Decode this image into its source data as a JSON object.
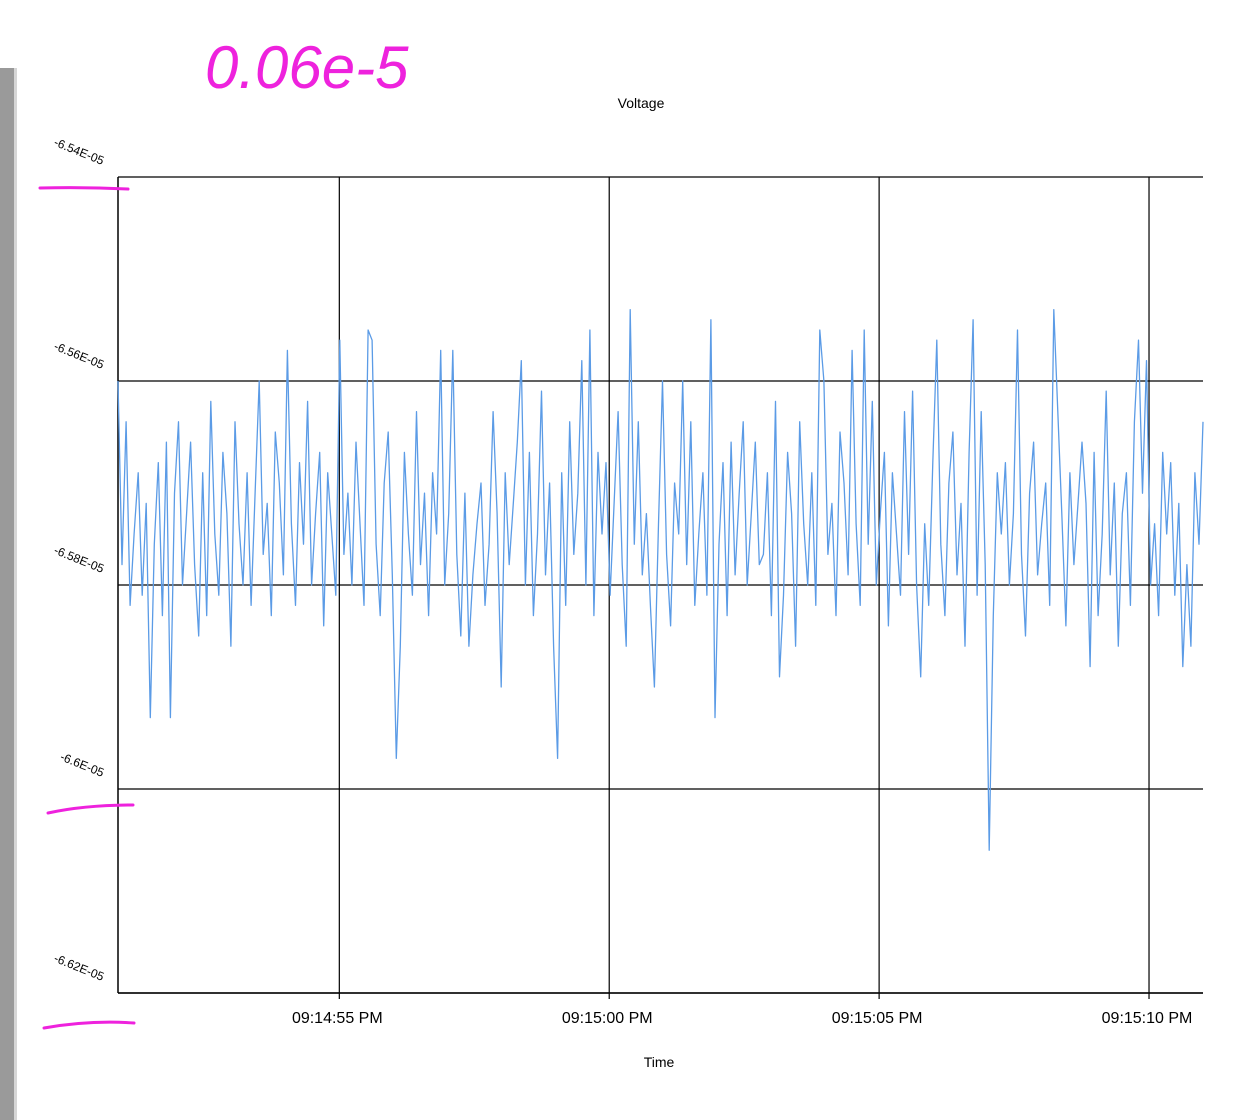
{
  "annotation": {
    "handwritten_note": "0.06e-5",
    "ink_color": "#ee22dd"
  },
  "chart_data": {
    "type": "line",
    "title": "Voltage",
    "xlabel": "Time",
    "ylabel": "",
    "ylim": [
      -6.62e-05,
      -6.54e-05
    ],
    "x_range": [
      "09:14:50.9 PM",
      "09:15:11.0 PM"
    ],
    "y_ticks": [
      {
        "value": -6.54e-05,
        "label": "-6.54E-05"
      },
      {
        "value": -6.56e-05,
        "label": "-6.56E-05"
      },
      {
        "value": -6.58e-05,
        "label": "-6.58E-05"
      },
      {
        "value": -6.6e-05,
        "label": "-6.6E-05"
      },
      {
        "value": -6.62e-05,
        "label": "-6.62E-05"
      }
    ],
    "x_ticks": [
      {
        "time": "09:14:55 PM",
        "label": "09:14:55 PM"
      },
      {
        "time": "09:15:00 PM",
        "label": "09:15:00 PM"
      },
      {
        "time": "09:15:05 PM",
        "label": "09:15:05 PM"
      },
      {
        "time": "09:15:10 PM",
        "label": "09:15:10 PM"
      }
    ],
    "grid": true,
    "series": [
      {
        "color": "#5b9be6",
        "x_start": "09:14:50.9 PM",
        "x_end": "09:15:11.0 PM",
        "values": [
          -6.56e-05,
          -6.578e-05,
          -6.564e-05,
          -6.582e-05,
          -6.575e-05,
          -6.569e-05,
          -6.581e-05,
          -6.572e-05,
          -6.593e-05,
          -6.576e-05,
          -6.568e-05,
          -6.583e-05,
          -6.566e-05,
          -6.579e-05,
          -6.571e-05,
          -6.564e-05,
          -6.58e-05,
          -6.573e-05,
          -6.566e-05,
          -6.578e-05,
          -6.577e-05,
          -6.569e-05,
          -6.583e-05,
          -6.562e-05,
          -6.575e-05,
          -6.581e-05,
          -6.567e-05,
          -6.573e-05,
          -6.586e-05,
          -6.564e-05,
          -6.574e-05,
          -6.58e-05,
          -6.569e-05,
          -6.582e-05,
          -6.571e-05,
          -6.56e-05,
          -6.577e-05,
          -6.572e-05,
          -6.583e-05,
          -6.565e-05,
          -6.57e-05,
          -6.579e-05,
          -6.557e-05,
          -6.574e-05,
          -6.582e-05,
          -6.568e-05,
          -6.576e-05,
          -6.562e-05,
          -6.58e-05,
          -6.573e-05,
          -6.567e-05,
          -6.584e-05,
          -6.569e-05,
          -6.575e-05,
          -6.581e-05,
          -6.563e-05,
          -6.577e-05,
          -6.571e-05,
          -6.58e-05,
          -6.566e-05,
          -6.574e-05,
          -6.582e-05,
          -6.568e-05,
          -6.556e-05,
          -6.576e-05,
          -6.583e-05,
          -6.57e-05,
          -6.565e-05,
          -6.579e-05,
          -6.572e-05,
          -6.586e-05,
          -6.567e-05,
          -6.575e-05,
          -6.581e-05,
          -6.563e-05,
          -6.578e-05,
          -6.571e-05,
          -6.583e-05,
          -6.569e-05,
          -6.575e-05,
          -6.568e-05,
          -6.58e-05,
          -6.573e-05,
          -6.557e-05,
          -6.577e-05,
          -6.585e-05,
          -6.571e-05,
          -6.566e-05,
          -6.579e-05,
          -6.574e-05,
          -6.57e-05,
          -6.582e-05,
          -6.576e-05,
          -6.563e-05,
          -6.573e-05,
          -6.584e-05,
          -6.569e-05,
          -6.578e-05,
          -6.572e-05,
          -6.566e-05,
          -6.572e-05,
          -6.58e-05,
          -6.567e-05,
          -6.583e-05,
          -6.575e-05,
          -6.561e-05,
          -6.579e-05,
          -6.57e-05,
          -6.586e-05,
          -6.573e-05,
          -6.569e-05,
          -6.582e-05,
          -6.564e-05,
          -6.577e-05,
          -6.571e-05,
          -6.558e-05,
          -6.58e-05,
          -6.574e-05,
          -6.583e-05,
          -6.567e-05,
          -6.575e-05,
          -6.568e-05,
          -6.581e-05,
          -6.572e-05,
          -6.563e-05,
          -6.578e-05,
          -6.586e-05,
          -6.569e-05,
          -6.576e-05,
          -6.564e-05,
          -6.579e-05,
          -6.573e-05,
          -6.582e-05,
          -6.567e-05,
          -6.574e-05,
          -6.56e-05,
          -6.577e-05,
          -6.584e-05,
          -6.57e-05,
          -6.575e-05
        ],
        "spikes": [
          {
            "index": 13,
            "value": -6.593e-05
          },
          {
            "index": 20,
            "value": -6.585e-05
          },
          {
            "index": 55,
            "value": -6.556e-05
          },
          {
            "index": 62,
            "value": -6.555e-05
          },
          {
            "index": 69,
            "value": -6.597e-05
          },
          {
            "index": 80,
            "value": -6.557e-05
          },
          {
            "index": 87,
            "value": -6.586e-05
          },
          {
            "index": 95,
            "value": -6.59e-05
          },
          {
            "index": 100,
            "value": -6.558e-05
          },
          {
            "index": 109,
            "value": -6.597e-05
          },
          {
            "index": 117,
            "value": -6.555e-05
          },
          {
            "index": 127,
            "value": -6.553e-05
          },
          {
            "index": 133,
            "value": -6.59e-05
          },
          {
            "index": 147,
            "value": -6.554e-05
          },
          {
            "index": 164,
            "value": -6.589e-05
          },
          {
            "index": 174,
            "value": -6.555e-05
          },
          {
            "index": 185,
            "value": -6.555e-05
          },
          {
            "index": 197,
            "value": -6.561e-05
          },
          {
            "index": 199,
            "value": -6.589e-05
          },
          {
            "index": 212,
            "value": -6.554e-05
          },
          {
            "index": 216,
            "value": -6.606e-05
          },
          {
            "index": 223,
            "value": -6.555e-05
          },
          {
            "index": 232,
            "value": -6.553e-05
          },
          {
            "index": 241,
            "value": -6.588e-05
          },
          {
            "index": 253,
            "value": -6.556e-05
          },
          {
            "index": 264,
            "value": -6.588e-05
          }
        ]
      }
    ]
  }
}
